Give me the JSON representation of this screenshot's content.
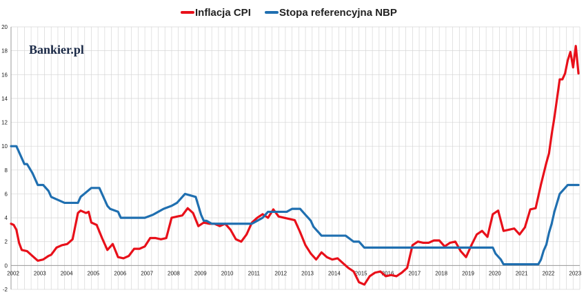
{
  "logo_text": "Bankier.pl",
  "colors": {
    "cpi": "#e8101a",
    "rate": "#1f6fb0",
    "grid": "#d6d6d6",
    "axis": "#999999"
  },
  "chart_data": {
    "type": "line",
    "legend_position": "top",
    "grid": true,
    "ylim": [
      -2,
      20
    ],
    "xlim": [
      2002,
      2023.25
    ],
    "y_ticks": [
      -2,
      0,
      2,
      4,
      6,
      8,
      10,
      12,
      14,
      16,
      18,
      20
    ],
    "x_ticks": [
      2002,
      2003,
      2004,
      2005,
      2006,
      2007,
      2008,
      2009,
      2010,
      2011,
      2012,
      2013,
      2014,
      2015,
      2016,
      2017,
      2018,
      2019,
      2020,
      2021,
      2022,
      2023
    ],
    "series": [
      {
        "name": "Inflacja CPI",
        "color": "#e8101a",
        "x": [
          2002.0,
          2002.1,
          2002.2,
          2002.3,
          2002.4,
          2002.6,
          2002.8,
          2003.0,
          2003.2,
          2003.4,
          2003.5,
          2003.7,
          2003.9,
          2004.1,
          2004.3,
          2004.5,
          2004.6,
          2004.8,
          2004.9,
          2005.0,
          2005.2,
          2005.4,
          2005.6,
          2005.8,
          2006.0,
          2006.2,
          2006.4,
          2006.6,
          2006.8,
          2007.0,
          2007.2,
          2007.4,
          2007.6,
          2007.8,
          2008.0,
          2008.2,
          2008.4,
          2008.6,
          2008.8,
          2009.0,
          2009.2,
          2009.4,
          2009.6,
          2009.8,
          2010.0,
          2010.2,
          2010.4,
          2010.6,
          2010.8,
          2011.0,
          2011.2,
          2011.4,
          2011.6,
          2011.8,
          2012.0,
          2012.2,
          2012.4,
          2012.6,
          2012.8,
          2013.0,
          2013.2,
          2013.4,
          2013.6,
          2013.8,
          2014.0,
          2014.2,
          2014.4,
          2014.6,
          2014.8,
          2015.0,
          2015.2,
          2015.4,
          2015.6,
          2015.8,
          2016.0,
          2016.2,
          2016.4,
          2016.6,
          2016.8,
          2017.0,
          2017.2,
          2017.4,
          2017.6,
          2017.8,
          2018.0,
          2018.2,
          2018.4,
          2018.6,
          2018.8,
          2019.0,
          2019.2,
          2019.4,
          2019.6,
          2019.8,
          2020.0,
          2020.2,
          2020.4,
          2020.6,
          2020.8,
          2021.0,
          2021.2,
          2021.4,
          2021.6,
          2021.8,
          2022.0,
          2022.1,
          2022.2,
          2022.3,
          2022.5,
          2022.6,
          2022.7,
          2022.8,
          2022.9,
          2023.0,
          2023.1,
          2023.2
        ],
        "y": [
          3.5,
          3.4,
          3.0,
          1.9,
          1.3,
          1.2,
          0.8,
          0.4,
          0.5,
          0.8,
          0.9,
          1.5,
          1.7,
          1.8,
          2.2,
          4.4,
          4.6,
          4.4,
          4.5,
          3.6,
          3.4,
          2.3,
          1.3,
          1.8,
          0.7,
          0.6,
          0.8,
          1.4,
          1.4,
          1.6,
          2.3,
          2.3,
          2.2,
          2.3,
          4.0,
          4.1,
          4.2,
          4.8,
          4.4,
          3.3,
          3.6,
          3.5,
          3.5,
          3.3,
          3.5,
          3.0,
          2.2,
          2.0,
          2.6,
          3.6,
          4.0,
          4.3,
          4.0,
          4.7,
          4.1,
          4.0,
          3.9,
          3.8,
          2.8,
          1.7,
          1.0,
          0.5,
          1.1,
          0.7,
          0.5,
          0.6,
          0.2,
          -0.2,
          -0.5,
          -1.4,
          -1.6,
          -0.9,
          -0.6,
          -0.5,
          -0.9,
          -0.8,
          -0.9,
          -0.6,
          -0.2,
          1.7,
          2.0,
          1.9,
          1.9,
          2.1,
          2.1,
          1.6,
          1.9,
          2.0,
          1.2,
          0.7,
          1.7,
          2.6,
          2.9,
          2.4,
          4.3,
          4.6,
          2.9,
          3.0,
          3.1,
          2.6,
          3.2,
          4.7,
          4.8,
          6.8,
          8.6,
          9.4,
          11.0,
          12.4,
          15.6,
          15.6,
          16.1,
          17.2,
          17.9,
          16.6,
          18.4,
          16.1
        ]
      },
      {
        "name": "Stopa referencyjna NBP",
        "color": "#1f6fb0",
        "x": [
          2002.0,
          2002.2,
          2002.3,
          2002.5,
          2002.6,
          2002.8,
          2003.0,
          2003.2,
          2003.4,
          2003.5,
          2004.0,
          2004.5,
          2004.6,
          2005.0,
          2005.3,
          2005.4,
          2005.6,
          2005.7,
          2006.0,
          2006.1,
          2007.0,
          2007.3,
          2007.5,
          2007.7,
          2008.0,
          2008.2,
          2008.5,
          2008.9,
          2009.0,
          2009.1,
          2009.2,
          2009.3,
          2009.5,
          2010.0,
          2010.5,
          2011.0,
          2011.2,
          2011.4,
          2011.6,
          2012.0,
          2012.3,
          2012.5,
          2012.8,
          2012.9,
          2013.0,
          2013.1,
          2013.2,
          2013.3,
          2013.4,
          2013.5,
          2013.6,
          2014.0,
          2014.5,
          2014.8,
          2015.0,
          2015.2,
          2015.5,
          2016.0,
          2017.0,
          2018.0,
          2019.0,
          2020.0,
          2020.1,
          2020.3,
          2020.4,
          2020.5,
          2021.0,
          2021.5,
          2021.7,
          2021.8,
          2021.9,
          2022.0,
          2022.1,
          2022.2,
          2022.3,
          2022.4,
          2022.5,
          2022.7,
          2022.8,
          2023.0,
          2023.2
        ],
        "y": [
          10.0,
          10.0,
          9.5,
          8.5,
          8.5,
          7.75,
          6.75,
          6.75,
          6.25,
          5.75,
          5.25,
          5.25,
          5.75,
          6.5,
          6.5,
          6.0,
          5.0,
          4.75,
          4.5,
          4.0,
          4.0,
          4.25,
          4.5,
          4.75,
          5.0,
          5.25,
          6.0,
          5.75,
          5.0,
          4.25,
          3.75,
          3.75,
          3.5,
          3.5,
          3.5,
          3.5,
          3.75,
          4.0,
          4.5,
          4.5,
          4.5,
          4.75,
          4.75,
          4.5,
          4.25,
          4.0,
          3.75,
          3.25,
          3.0,
          2.75,
          2.5,
          2.5,
          2.5,
          2.0,
          2.0,
          1.5,
          1.5,
          1.5,
          1.5,
          1.5,
          1.5,
          1.5,
          1.0,
          0.5,
          0.1,
          0.1,
          0.1,
          0.1,
          0.1,
          0.5,
          1.25,
          1.75,
          2.75,
          3.5,
          4.5,
          5.25,
          6.0,
          6.5,
          6.75,
          6.75,
          6.75
        ]
      }
    ]
  }
}
